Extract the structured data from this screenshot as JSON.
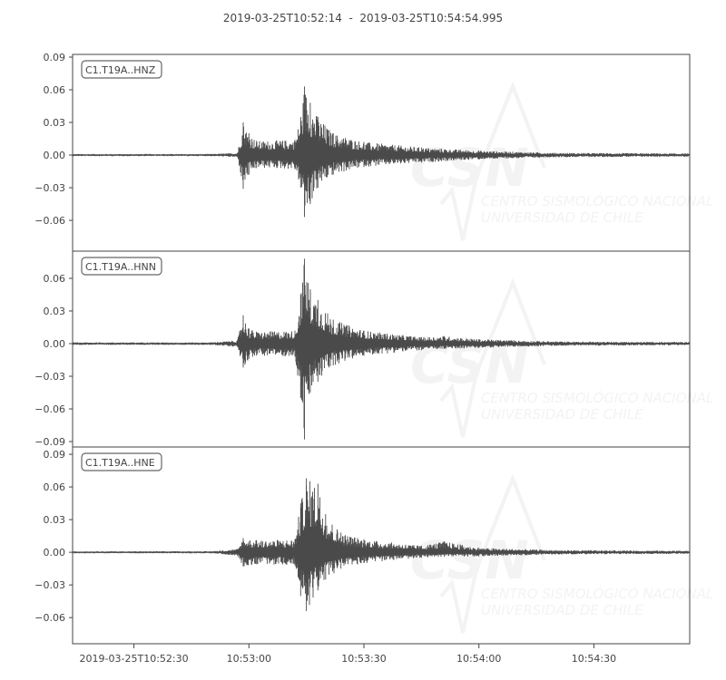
{
  "chart_data": [
    {
      "type": "line",
      "title": "2019-03-25T10:52:14  -  2019-03-25T10:54:54.995",
      "xlim": [
        "10:52:14",
        "10:54:54.995"
      ],
      "x_ticks": [
        "2019-03-25T10:52:30",
        "10:53:00",
        "10:53:30",
        "10:54:00",
        "10:54:30"
      ],
      "x_tick_times": [
        "10:52:30",
        "10:53:00",
        "10:53:30",
        "10:54:00",
        "10:54:30"
      ],
      "line_color": "#4a4a4a",
      "grid": false,
      "watermark": {
        "logo": "CSN",
        "line1": "CENTRO SISMOLÓGICO NACIONAL",
        "line2": "UNIVERSIDAD DE CHILE"
      },
      "traces": [
        {
          "name": "C1.T19A..HNZ",
          "ylim": [
            -0.0883,
            0.0925
          ],
          "y_ticks": [
            0.09,
            0.06,
            0.03,
            0.0,
            -0.03,
            -0.06
          ],
          "y_tick_labels": [
            "0.09",
            "0.06",
            "0.03",
            "0.00",
            "−0.03",
            "−0.06"
          ],
          "envelope": [
            [
              "10:52:14",
              0.001,
              -0.001
            ],
            [
              "10:52:50",
              0.001,
              -0.001
            ],
            [
              "10:52:57",
              0.002,
              -0.002
            ],
            [
              "10:52:58.5",
              0.03,
              -0.031
            ],
            [
              "10:53:00",
              0.02,
              -0.018
            ],
            [
              "10:53:02",
              0.013,
              -0.012
            ],
            [
              "10:53:12",
              0.014,
              -0.013
            ],
            [
              "10:53:13.5",
              0.035,
              -0.03
            ],
            [
              "10:53:14.5",
              0.063,
              -0.057
            ],
            [
              "10:53:16",
              0.048,
              -0.045
            ],
            [
              "10:53:18",
              0.035,
              -0.03
            ],
            [
              "10:53:22",
              0.02,
              -0.018
            ],
            [
              "10:53:30",
              0.012,
              -0.011
            ],
            [
              "10:53:45",
              0.007,
              -0.007
            ],
            [
              "10:54:00",
              0.004,
              -0.004
            ],
            [
              "10:54:20",
              0.002,
              -0.002
            ],
            [
              "10:54:55",
              0.0015,
              -0.0015
            ]
          ]
        },
        {
          "name": "C1.T19A..HNN",
          "ylim": [
            -0.095,
            0.085
          ],
          "y_ticks": [
            0.06,
            0.03,
            0.0,
            -0.03,
            -0.06,
            -0.09
          ],
          "y_tick_labels": [
            "0.06",
            "0.03",
            "0.00",
            "−0.03",
            "−0.06",
            "−0.09"
          ],
          "envelope": [
            [
              "10:52:14",
              0.0012,
              -0.0012
            ],
            [
              "10:52:50",
              0.0012,
              -0.0012
            ],
            [
              "10:52:57",
              0.003,
              -0.003
            ],
            [
              "10:52:58.5",
              0.026,
              -0.022
            ],
            [
              "10:53:00",
              0.014,
              -0.014
            ],
            [
              "10:53:02",
              0.011,
              -0.011
            ],
            [
              "10:53:12",
              0.012,
              -0.012
            ],
            [
              "10:53:13.5",
              0.045,
              -0.05
            ],
            [
              "10:53:14.5",
              0.078,
              -0.088
            ],
            [
              "10:53:16",
              0.05,
              -0.045
            ],
            [
              "10:53:18",
              0.04,
              -0.035
            ],
            [
              "10:53:22",
              0.022,
              -0.02
            ],
            [
              "10:53:30",
              0.012,
              -0.011
            ],
            [
              "10:53:45",
              0.006,
              -0.006
            ],
            [
              "10:53:51",
              0.007,
              -0.005
            ],
            [
              "10:54:00",
              0.004,
              -0.004
            ],
            [
              "10:54:20",
              0.002,
              -0.002
            ],
            [
              "10:54:55",
              0.0015,
              -0.0015
            ]
          ]
        },
        {
          "name": "C1.T19A..HNE",
          "ylim": [
            -0.084,
            0.0967
          ],
          "y_ticks": [
            0.09,
            0.06,
            0.03,
            0.0,
            -0.03,
            -0.06
          ],
          "y_tick_labels": [
            "0.09",
            "0.06",
            "0.03",
            "0.00",
            "−0.03",
            "−0.06"
          ],
          "envelope": [
            [
              "10:52:14",
              0.001,
              -0.001
            ],
            [
              "10:52:50",
              0.001,
              -0.001
            ],
            [
              "10:52:57",
              0.003,
              -0.003
            ],
            [
              "10:52:58.5",
              0.013,
              -0.013
            ],
            [
              "10:53:02",
              0.011,
              -0.011
            ],
            [
              "10:53:12",
              0.012,
              -0.012
            ],
            [
              "10:53:13.5",
              0.045,
              -0.04
            ],
            [
              "10:53:15",
              0.068,
              -0.054
            ],
            [
              "10:53:18",
              0.063,
              -0.035
            ],
            [
              "10:53:20",
              0.035,
              -0.025
            ],
            [
              "10:53:24",
              0.018,
              -0.015
            ],
            [
              "10:53:30",
              0.012,
              -0.01
            ],
            [
              "10:53:45",
              0.006,
              -0.005
            ],
            [
              "10:53:51",
              0.01,
              -0.004
            ],
            [
              "10:54:00",
              0.004,
              -0.004
            ],
            [
              "10:54:20",
              0.002,
              -0.002
            ],
            [
              "10:54:55",
              0.0015,
              -0.0015
            ]
          ]
        }
      ]
    }
  ]
}
